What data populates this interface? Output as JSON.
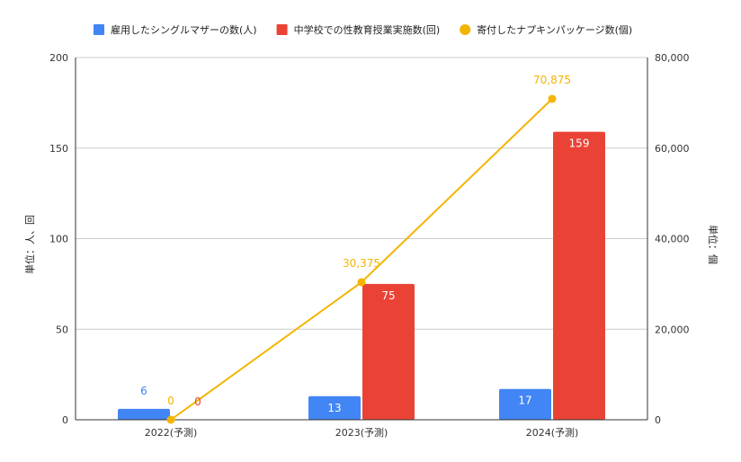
{
  "chart_data": {
    "type": "bar",
    "categories": [
      "2022(予測)",
      "2023(予測)",
      "2024(予測)"
    ],
    "series": [
      {
        "name": "雇用したシングルマザーの数(人)",
        "kind": "bar",
        "axis": "left",
        "color": "#4285f4",
        "label_color": "#4285f4",
        "values": [
          6,
          13,
          17
        ]
      },
      {
        "name": "中学校での性教育授業実施数(回)",
        "kind": "bar",
        "axis": "left",
        "color": "#ea4335",
        "label_color": "#ea4335",
        "values": [
          0,
          75,
          159
        ]
      },
      {
        "name": "寄付したナプキンパッケージ数(個)",
        "kind": "line",
        "axis": "right",
        "color": "#f4b400",
        "label_color": "#f4b400",
        "values": [
          0,
          30375,
          70875
        ]
      }
    ],
    "value_labels": [
      [
        "6",
        "13",
        "17"
      ],
      [
        "0",
        "75",
        "159"
      ],
      [
        "0",
        "30,375",
        "70,875"
      ]
    ],
    "left_axis": {
      "label": "単位：人、回",
      "ylim": [
        0,
        200
      ],
      "ticks": [
        0,
        50,
        100,
        150,
        200
      ],
      "tick_labels": [
        "0",
        "50",
        "100",
        "150",
        "200"
      ]
    },
    "right_axis": {
      "label": "単位：個",
      "ylim": [
        0,
        80000
      ],
      "ticks": [
        0,
        20000,
        40000,
        60000,
        80000
      ],
      "tick_labels": [
        "0",
        "20,000",
        "40,000",
        "60,000",
        "80,000"
      ]
    },
    "grid": true,
    "legend": "top"
  }
}
